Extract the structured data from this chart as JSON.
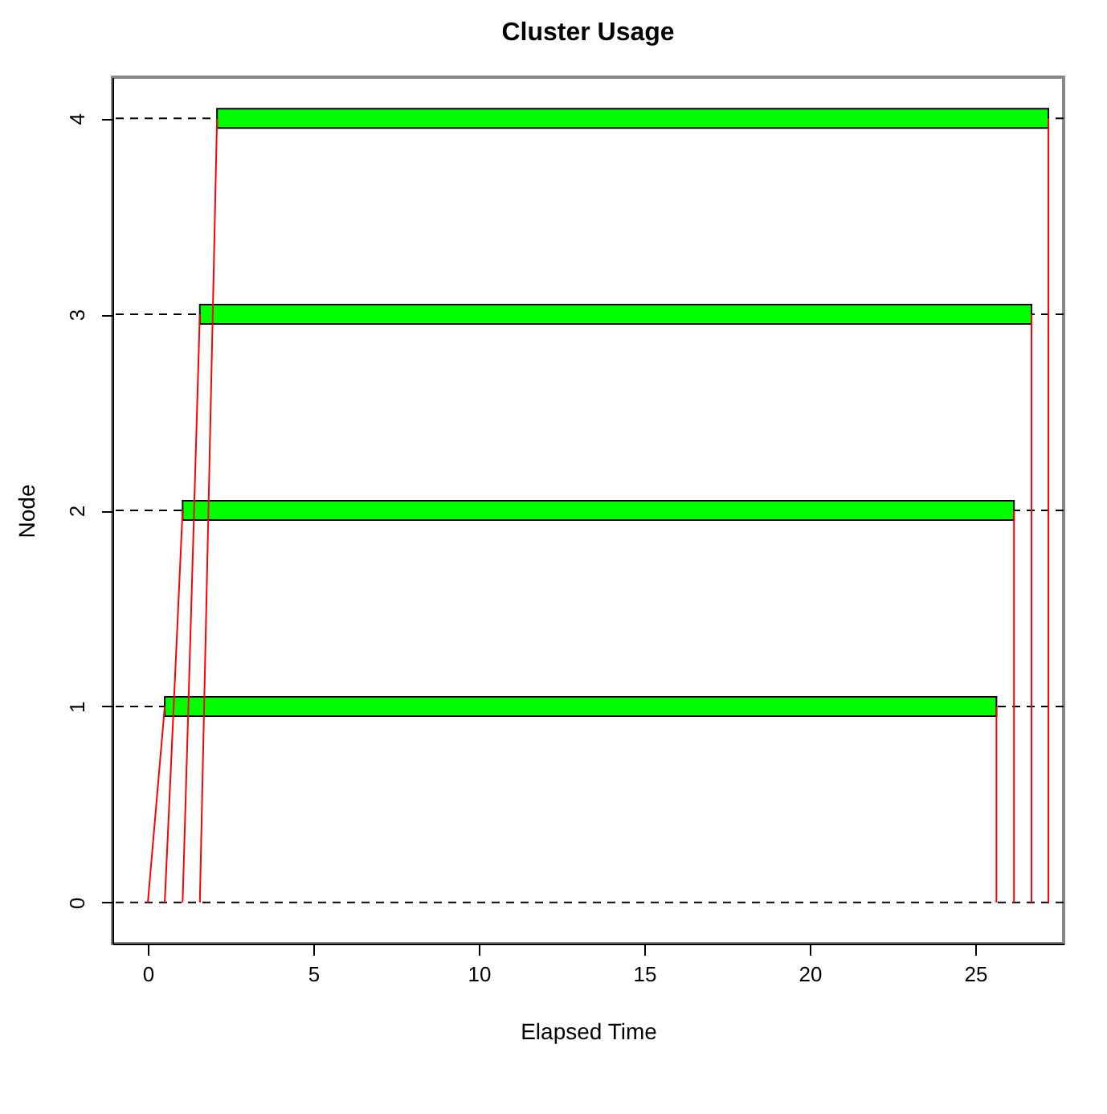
{
  "chart_data": {
    "type": "bar",
    "title": "Cluster Usage",
    "xlabel": "Elapsed Time",
    "ylabel": "Node",
    "orientation": "horizontal",
    "xlim": [
      -1.07,
      27.67
    ],
    "xticks": [
      0,
      5,
      10,
      15,
      20,
      25
    ],
    "ylim": [
      -0.21,
      4.21
    ],
    "yticks": [
      0,
      1,
      2,
      3,
      4
    ],
    "grid": false,
    "ref_lines": [
      {
        "axis": "y",
        "value": 0,
        "color": "#000000",
        "line_style": "dashed"
      },
      {
        "axis": "y",
        "value": 1,
        "color": "#000000",
        "line_style": "dashed"
      },
      {
        "axis": "y",
        "value": 2,
        "color": "#000000",
        "line_style": "dashed"
      },
      {
        "axis": "y",
        "value": 3,
        "color": "#000000",
        "line_style": "dashed"
      },
      {
        "axis": "y",
        "value": 4,
        "color": "#000000",
        "line_style": "dashed"
      }
    ],
    "series": [
      {
        "type": "line",
        "color": "#ff0000",
        "x": [
          0,
          1
        ],
        "values": [
          0,
          0.51
        ]
      },
      {
        "type": "line",
        "color": "#ff0000",
        "x": [
          0,
          2
        ],
        "values": [
          0.51,
          1.05
        ]
      },
      {
        "type": "line",
        "color": "#ff0000",
        "x": [
          0,
          3
        ],
        "values": [
          1.05,
          1.57
        ]
      },
      {
        "type": "line",
        "color": "#ff0000",
        "x": [
          0,
          4
        ],
        "values": [
          1.57,
          2.09
        ]
      },
      {
        "type": "line",
        "color": "#ff0000",
        "x": [
          1,
          0
        ],
        "values": [
          25.64,
          25.64
        ]
      },
      {
        "type": "line",
        "color": "#ff0000",
        "x": [
          2,
          0
        ],
        "values": [
          26.17,
          26.17
        ]
      },
      {
        "type": "line",
        "color": "#ff0000",
        "x": [
          3,
          0
        ],
        "values": [
          26.7,
          26.7
        ]
      },
      {
        "type": "line",
        "color": "#ff0000",
        "x": [
          4,
          0
        ],
        "values": [
          27.21,
          27.21
        ]
      },
      {
        "color": "#00ff00",
        "x": [
          1,
          2,
          3,
          4
        ],
        "base": [
          0.51,
          1.05,
          1.57,
          2.09
        ],
        "values": [
          25.13,
          25.12,
          25.13,
          25.12
        ]
      }
    ]
  }
}
